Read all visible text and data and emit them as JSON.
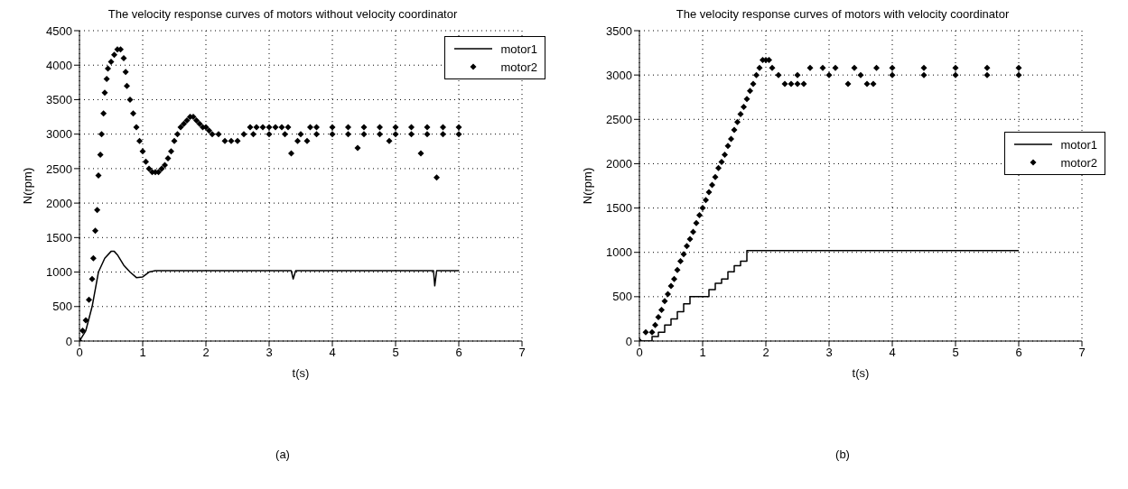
{
  "chart_data": [
    {
      "type": "line",
      "title": "The velocity response curves of motors without velocity coordinator",
      "xlabel": "t(s)",
      "ylabel": "N(rpm)",
      "annotations": [
        "(a)"
      ],
      "xlim": [
        0,
        7
      ],
      "xticks": [
        0,
        1,
        2,
        3,
        4,
        5,
        6,
        7
      ],
      "ylim": [
        0,
        4500
      ],
      "yticks": [
        0,
        500,
        1000,
        1500,
        2000,
        2500,
        3000,
        3500,
        4000,
        4500
      ],
      "grid": true,
      "legend": "top right",
      "line_style": "solid",
      "series": [
        {
          "name": "motor1",
          "type": "line",
          "color": "#000000",
          "marker": "none",
          "x": [
            0,
            0.1,
            0.2,
            0.3,
            0.4,
            0.5,
            0.55,
            0.6,
            0.7,
            0.8,
            0.9,
            1.0,
            1.1,
            1.2,
            2,
            3,
            3.35,
            3.38,
            3.42,
            4,
            5,
            5.6,
            5.62,
            5.65,
            6
          ],
          "values": [
            0,
            150,
            500,
            1000,
            1200,
            1300,
            1300,
            1250,
            1100,
            1000,
            920,
            930,
            1000,
            1020,
            1020,
            1020,
            1020,
            900,
            1020,
            1020,
            1020,
            1020,
            800,
            1020,
            1020
          ]
        },
        {
          "name": "motor2",
          "type": "scatter",
          "color": "#000000",
          "marker": "diamond",
          "x": [
            0,
            0.05,
            0.1,
            0.15,
            0.2,
            0.22,
            0.25,
            0.28,
            0.3,
            0.33,
            0.35,
            0.38,
            0.4,
            0.43,
            0.45,
            0.5,
            0.55,
            0.6,
            0.65,
            0.7,
            0.73,
            0.75,
            0.8,
            0.85,
            0.9,
            0.95,
            1.0,
            1.05,
            1.1,
            1.15,
            1.2,
            1.25,
            1.3,
            1.35,
            1.4,
            1.45,
            1.5,
            1.55,
            1.6,
            1.65,
            1.7,
            1.75,
            1.8,
            1.85,
            1.9,
            1.95,
            2.0,
            2.05,
            2.1,
            2.2,
            2.3,
            2.4,
            2.5,
            2.6,
            2.7,
            2.8,
            2.9,
            3.0,
            3.1,
            3.2,
            3.3,
            3.35,
            3.45,
            3.6,
            3.65,
            3.75,
            4.0,
            4.25,
            4.4,
            4.5,
            4.75,
            4.9,
            5.0,
            5.25,
            5.4,
            5.5,
            5.65,
            5.75,
            6.0,
            2.75,
            3.0,
            3.25,
            3.5,
            3.75,
            4.0,
            4.25,
            4.5,
            4.75,
            5.0,
            5.25,
            5.5,
            5.75,
            6.0
          ],
          "values": [
            0,
            150,
            300,
            600,
            900,
            1200,
            1600,
            1900,
            2400,
            2700,
            3000,
            3300,
            3600,
            3800,
            3950,
            4050,
            4150,
            4230,
            4230,
            4100,
            3900,
            3700,
            3500,
            3300,
            3100,
            2900,
            2750,
            2600,
            2500,
            2450,
            2450,
            2450,
            2500,
            2550,
            2650,
            2750,
            2900,
            3000,
            3100,
            3150,
            3200,
            3250,
            3250,
            3200,
            3150,
            3100,
            3100,
            3050,
            3000,
            3000,
            2900,
            2900,
            2900,
            3000,
            3100,
            3100,
            3100,
            3100,
            3100,
            3100,
            3100,
            2720,
            2900,
            2900,
            3100,
            3100,
            3100,
            3100,
            2800,
            3100,
            3100,
            2900,
            3100,
            3100,
            2720,
            3100,
            2370,
            3100,
            3100,
            3000,
            3000,
            3000,
            3000,
            3000,
            3000,
            3000,
            3000,
            3000,
            3000,
            3000,
            3000,
            3000,
            3000
          ]
        }
      ]
    },
    {
      "type": "line",
      "title": "The velocity response curves of motors with velocity coordinator",
      "xlabel": "t(s)",
      "ylabel": "N(rpm)",
      "annotations": [
        "(b)"
      ],
      "xlim": [
        0,
        7
      ],
      "xticks": [
        0,
        1,
        2,
        3,
        4,
        5,
        6,
        7
      ],
      "ylim": [
        0,
        3500
      ],
      "yticks": [
        0,
        500,
        1000,
        1500,
        2000,
        2500,
        3000,
        3500
      ],
      "grid": true,
      "legend": "right",
      "line_style": "solid",
      "series": [
        {
          "name": "motor1",
          "type": "step",
          "color": "#000000",
          "marker": "none",
          "x": [
            0,
            0.2,
            0.3,
            0.4,
            0.5,
            0.6,
            0.7,
            0.8,
            1.0,
            1.1,
            1.2,
            1.3,
            1.4,
            1.5,
            1.6,
            1.7,
            6
          ],
          "values": [
            0,
            50,
            100,
            180,
            250,
            330,
            420,
            500,
            500,
            580,
            650,
            700,
            780,
            850,
            900,
            1020,
            1020
          ]
        },
        {
          "name": "motor2",
          "type": "scatter",
          "color": "#000000",
          "marker": "diamond",
          "x": [
            0,
            0.1,
            0.2,
            0.25,
            0.3,
            0.35,
            0.4,
            0.45,
            0.5,
            0.55,
            0.6,
            0.65,
            0.7,
            0.75,
            0.8,
            0.85,
            0.9,
            0.95,
            1.0,
            1.05,
            1.1,
            1.15,
            1.2,
            1.25,
            1.3,
            1.35,
            1.4,
            1.45,
            1.5,
            1.55,
            1.6,
            1.65,
            1.7,
            1.75,
            1.8,
            1.85,
            1.9,
            1.95,
            2.0,
            2.05,
            2.1,
            2.2,
            2.3,
            2.4,
            2.5,
            2.6,
            2.7,
            2.9,
            3.1,
            3.3,
            3.4,
            3.6,
            3.7,
            3.75,
            4.0,
            4.5,
            5.0,
            5.5,
            6.0,
            2.5,
            3.0,
            3.5,
            4.0,
            4.5,
            5.0,
            5.5,
            6.0
          ],
          "values": [
            0,
            100,
            100,
            180,
            270,
            350,
            450,
            530,
            620,
            700,
            800,
            900,
            980,
            1070,
            1150,
            1230,
            1330,
            1420,
            1500,
            1590,
            1680,
            1760,
            1850,
            1950,
            2020,
            2100,
            2200,
            2280,
            2380,
            2470,
            2560,
            2640,
            2730,
            2820,
            2900,
            3000,
            3080,
            3170,
            3170,
            3170,
            3080,
            3000,
            2900,
            2900,
            2900,
            2900,
            3080,
            3080,
            3080,
            2900,
            3080,
            2900,
            2900,
            3080,
            3080,
            3080,
            3080,
            3080,
            3080,
            3000,
            3000,
            3000,
            3000,
            3000,
            3000,
            3000,
            3000
          ]
        }
      ]
    }
  ]
}
